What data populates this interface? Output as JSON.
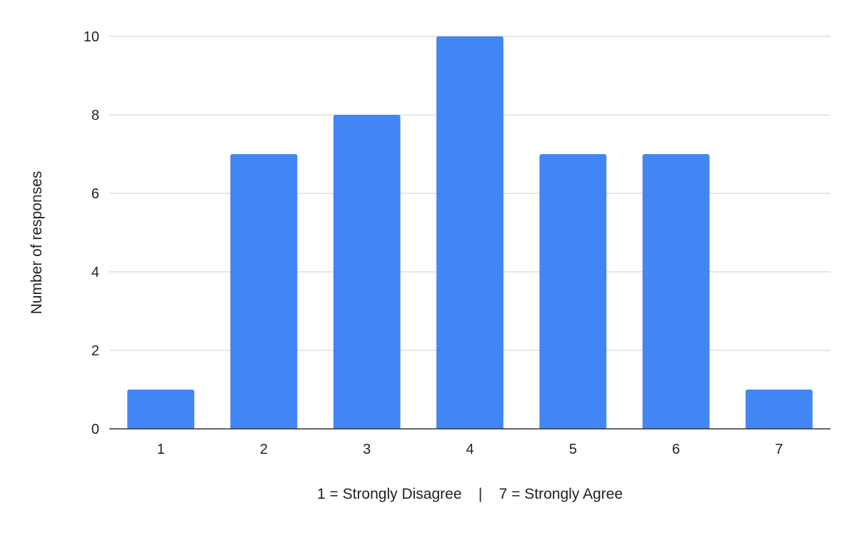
{
  "chart_data": {
    "type": "bar",
    "title": "",
    "categories": [
      "1",
      "2",
      "3",
      "4",
      "5",
      "6",
      "7"
    ],
    "series": [
      {
        "values": [
          1,
          7,
          8,
          10,
          7,
          7,
          1
        ]
      }
    ],
    "xlabel": "1 = Strongly Disagree    |    7 = Strongly Agree",
    "ylabel": "Number of responses",
    "ylim": [
      0,
      10
    ],
    "yticks": [
      "0",
      "2",
      "4",
      "6",
      "8",
      "10"
    ],
    "grid": true,
    "legend": "none",
    "colors": {
      "bar": "#4285f4",
      "grid": "#cccccc",
      "axis": "#333333"
    }
  }
}
